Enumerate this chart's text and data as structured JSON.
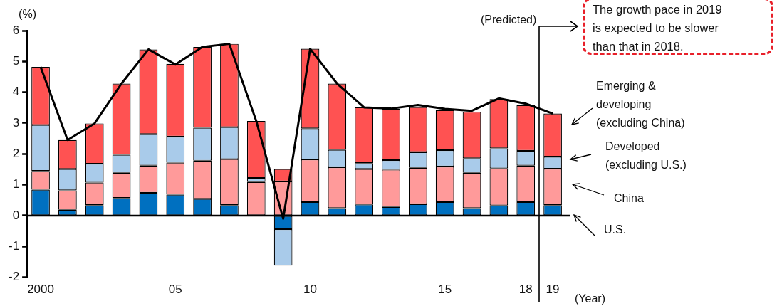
{
  "chart_data": {
    "type": "bar",
    "stacked": true,
    "ylabel": "(%)",
    "xlabel": "(Year)",
    "categories": [
      "2000",
      null,
      null,
      null,
      null,
      "05",
      null,
      null,
      null,
      null,
      "10",
      null,
      null,
      null,
      null,
      "15",
      null,
      null,
      "18",
      "19"
    ],
    "series": [
      {
        "name": "U.S.",
        "color": "#0070c0",
        "values": [
          0.84,
          0.19,
          0.34,
          0.57,
          0.74,
          0.68,
          0.54,
          0.34,
          0,
          -0.44,
          0.44,
          0.24,
          0.36,
          0.28,
          0.37,
          0.44,
          0.24,
          0.33,
          0.44,
          0.34
        ]
      },
      {
        "name": "China",
        "color": "#ff9a9a",
        "values": [
          0.61,
          0.63,
          0.73,
          0.82,
          0.88,
          1.04,
          1.24,
          1.49,
          1.09,
          1.11,
          1.38,
          1.33,
          1.15,
          1.21,
          1.18,
          1.15,
          1.15,
          1.2,
          1.18,
          1.18
        ]
      },
      {
        "name": "Developed\n(excluding U.S.)",
        "color": "#a9cbea",
        "values": [
          1.49,
          0.69,
          0.61,
          0.58,
          1.02,
          0.84,
          1.07,
          1.04,
          0.13,
          -1.18,
          1.01,
          0.56,
          0.19,
          0.31,
          0.51,
          0.53,
          0.47,
          0.65,
          0.48,
          0.39
        ]
      },
      {
        "name": "Emerging &\ndeveloping\n(excluding China)",
        "color": "#ff5252",
        "values": [
          1.88,
          0.94,
          1.31,
          2.31,
          2.75,
          2.36,
          2.62,
          2.7,
          1.85,
          0.4,
          2.58,
          2.15,
          1.81,
          1.66,
          1.46,
          1.3,
          1.51,
          1.6,
          1.48,
          1.4
        ]
      },
      {
        "type": "line",
        "color": "#000000",
        "values": [
          4.82,
          2.45,
          2.99,
          4.28,
          5.39,
          4.9,
          5.47,
          5.57,
          3.07,
          -0.1,
          5.41,
          4.28,
          3.51,
          3.47,
          3.59,
          3.46,
          3.4,
          3.8,
          3.63,
          3.31
        ]
      }
    ],
    "ylim": [
      -2,
      6
    ],
    "yticks": [
      -2,
      -1,
      0,
      1,
      2,
      3,
      4,
      5,
      6
    ],
    "grid": false,
    "legend": "right",
    "marker": "none",
    "ref_lines": [
      {
        "axis": "y",
        "value": 0,
        "color": "#000000"
      }
    ],
    "annotations": [
      "(Predicted)",
      "The growth pace in 2019\nis expected to be slower\nthan that in 2018."
    ]
  }
}
